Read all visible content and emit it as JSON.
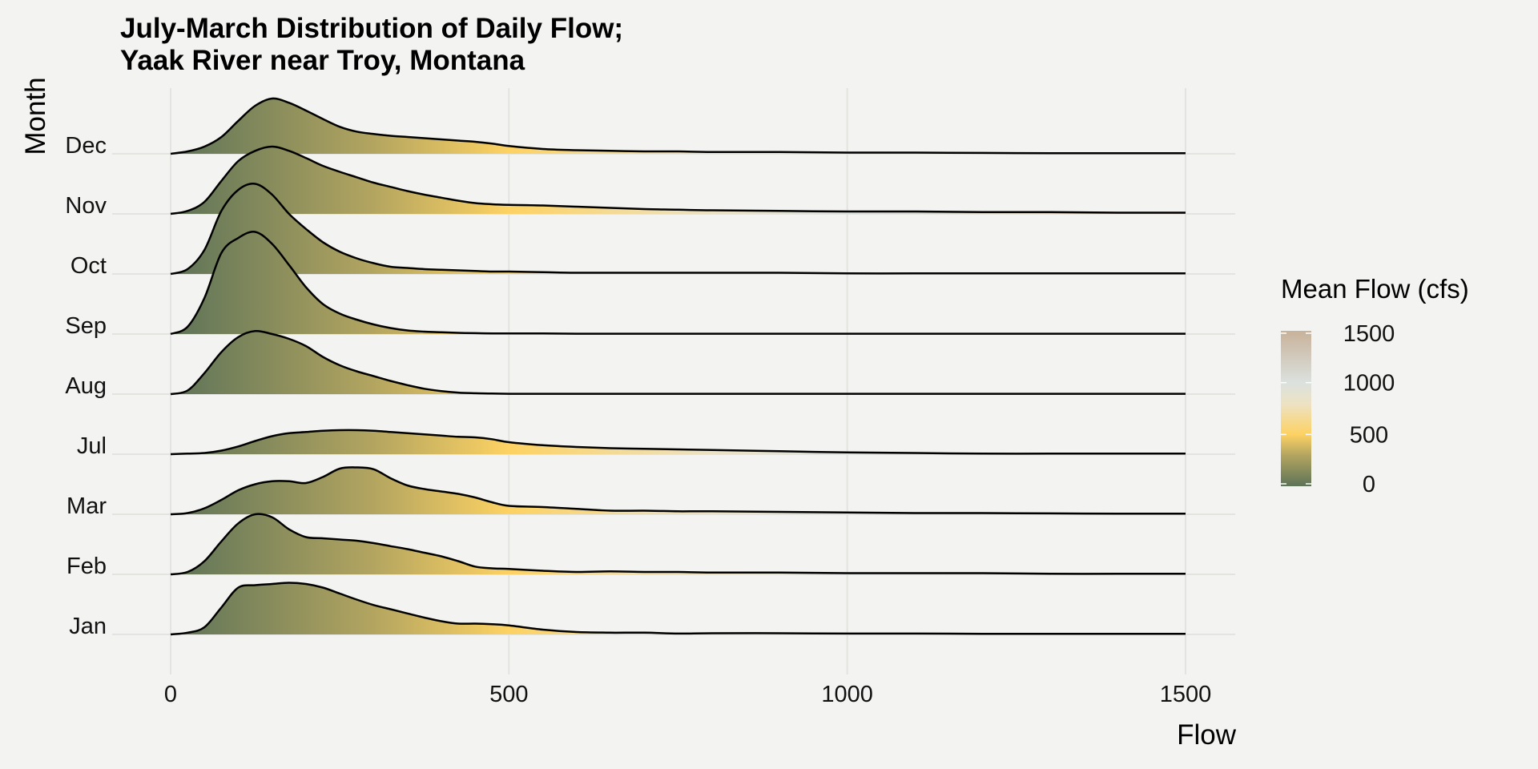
{
  "chart_data": {
    "type": "ridgeline",
    "title_lines": [
      "July-March Distribution of Daily Flow;",
      "Yaak River near Troy, Montana"
    ],
    "xlabel": "Flow",
    "ylabel": "Month",
    "xlim": [
      0,
      1500
    ],
    "x_ticks": [
      0,
      500,
      1000,
      1500
    ],
    "grid": true,
    "legend": {
      "title": "Mean Flow (cfs)",
      "placement": "right",
      "ticks": [
        0,
        500,
        1000,
        1500
      ],
      "gradient": [
        {
          "value": 0,
          "color": "#5d7358"
        },
        {
          "value": 300,
          "color": "#b3a560"
        },
        {
          "value": 500,
          "color": "#fdd263"
        },
        {
          "value": 800,
          "color": "#ece2c4"
        },
        {
          "value": 1000,
          "color": "#dbe1de"
        },
        {
          "value": 1500,
          "color": "#c8b29a"
        }
      ]
    },
    "x": [
      0,
      25,
      50,
      75,
      100,
      125,
      150,
      175,
      200,
      225,
      250,
      275,
      300,
      325,
      350,
      375,
      400,
      425,
      450,
      475,
      500,
      550,
      600,
      650,
      700,
      750,
      800,
      900,
      1000,
      1100,
      1200,
      1300,
      1400,
      1500
    ],
    "series": [
      {
        "name": "Jan",
        "density": [
          0,
          0.03,
          0.12,
          0.45,
          0.78,
          0.82,
          0.84,
          0.86,
          0.84,
          0.78,
          0.68,
          0.58,
          0.49,
          0.42,
          0.35,
          0.28,
          0.22,
          0.18,
          0.18,
          0.17,
          0.15,
          0.08,
          0.04,
          0.03,
          0.03,
          0.015,
          0.02,
          0.02,
          0.015,
          0.015,
          0.01,
          0.01,
          0.01,
          0.01
        ]
      },
      {
        "name": "Feb",
        "density": [
          0,
          0.04,
          0.22,
          0.55,
          0.85,
          1.0,
          0.95,
          0.75,
          0.62,
          0.6,
          0.58,
          0.56,
          0.52,
          0.47,
          0.42,
          0.36,
          0.3,
          0.22,
          0.13,
          0.1,
          0.09,
          0.06,
          0.04,
          0.05,
          0.04,
          0.04,
          0.03,
          0.03,
          0.02,
          0.02,
          0.02,
          0.01,
          0.01,
          0.01
        ]
      },
      {
        "name": "Mar",
        "density": [
          0,
          0.02,
          0.1,
          0.24,
          0.4,
          0.5,
          0.55,
          0.55,
          0.52,
          0.62,
          0.76,
          0.78,
          0.75,
          0.6,
          0.48,
          0.42,
          0.38,
          0.34,
          0.28,
          0.2,
          0.14,
          0.12,
          0.09,
          0.06,
          0.06,
          0.05,
          0.05,
          0.04,
          0.03,
          0.02,
          0.02,
          0.015,
          0.01,
          0.01
        ]
      },
      {
        "name": "Jul",
        "density": [
          0,
          0.01,
          0.02,
          0.06,
          0.13,
          0.22,
          0.3,
          0.35,
          0.37,
          0.39,
          0.4,
          0.4,
          0.39,
          0.37,
          0.35,
          0.33,
          0.31,
          0.29,
          0.28,
          0.25,
          0.2,
          0.15,
          0.12,
          0.1,
          0.09,
          0.08,
          0.07,
          0.05,
          0.03,
          0.02,
          0.01,
          0.01,
          0.01,
          0.01
        ]
      },
      {
        "name": "Aug",
        "density": [
          0,
          0.06,
          0.35,
          0.7,
          0.95,
          1.05,
          1.0,
          0.92,
          0.8,
          0.62,
          0.48,
          0.38,
          0.3,
          0.22,
          0.15,
          0.09,
          0.05,
          0.025,
          0.015,
          0.01,
          0.005,
          0.005,
          0.005,
          0.005,
          0.005,
          0.005,
          0.005,
          0.005,
          0.005,
          0.005,
          0.005,
          0.005,
          0.005,
          0.005
        ]
      },
      {
        "name": "Sep",
        "density": [
          0,
          0.12,
          0.6,
          1.35,
          1.6,
          1.7,
          1.5,
          1.15,
          0.78,
          0.5,
          0.34,
          0.24,
          0.16,
          0.1,
          0.06,
          0.04,
          0.03,
          0.02,
          0.015,
          0.01,
          0.01,
          0.01,
          0.005,
          0.005,
          0.005,
          0.005,
          0.005,
          0.005,
          0.005,
          0.005,
          0.005,
          0.005,
          0.005,
          0.005
        ]
      },
      {
        "name": "Oct",
        "density": [
          0,
          0.08,
          0.4,
          1.05,
          1.4,
          1.5,
          1.32,
          1.0,
          0.75,
          0.53,
          0.37,
          0.26,
          0.18,
          0.12,
          0.1,
          0.08,
          0.07,
          0.06,
          0.05,
          0.04,
          0.04,
          0.03,
          0.02,
          0.02,
          0.02,
          0.02,
          0.02,
          0.02,
          0.01,
          0.01,
          0.01,
          0.01,
          0.01,
          0.01
        ]
      },
      {
        "name": "Nov",
        "density": [
          0,
          0.05,
          0.2,
          0.55,
          0.88,
          1.05,
          1.12,
          1.05,
          0.93,
          0.8,
          0.7,
          0.61,
          0.52,
          0.45,
          0.38,
          0.32,
          0.27,
          0.22,
          0.18,
          0.16,
          0.15,
          0.14,
          0.12,
          0.1,
          0.08,
          0.07,
          0.06,
          0.05,
          0.04,
          0.04,
          0.03,
          0.03,
          0.02,
          0.02
        ]
      },
      {
        "name": "Dec",
        "density": [
          0,
          0.04,
          0.12,
          0.28,
          0.55,
          0.8,
          0.92,
          0.85,
          0.72,
          0.58,
          0.45,
          0.37,
          0.33,
          0.3,
          0.28,
          0.26,
          0.24,
          0.22,
          0.2,
          0.17,
          0.13,
          0.08,
          0.06,
          0.05,
          0.04,
          0.04,
          0.03,
          0.03,
          0.02,
          0.02,
          0.015,
          0.01,
          0.01,
          0.01
        ]
      }
    ]
  }
}
